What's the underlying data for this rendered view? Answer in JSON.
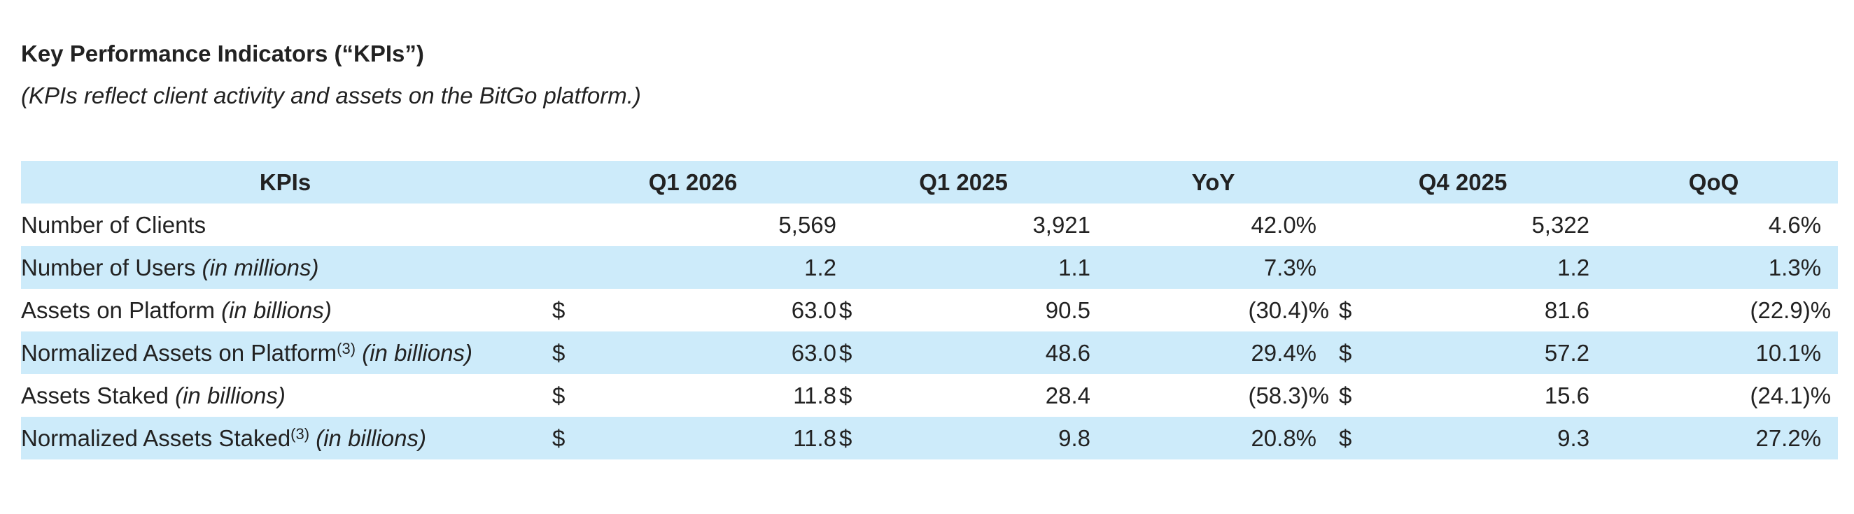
{
  "heading": "Key Performance Indicators (“KPIs”)",
  "subheading": "(KPIs reflect client activity and assets on the BitGo platform.)",
  "table": {
    "headers": {
      "kpis": "KPIs",
      "q1_2026": "Q1 2026",
      "q1_2025": "Q1 2025",
      "yoy": "YoY",
      "q4_2025": "Q4 2025",
      "qoq": "QoQ"
    },
    "rows": [
      {
        "label": "Number of Clients",
        "footnote": "",
        "unit": "",
        "cur_q1_2026": "",
        "q1_2026": "5,569",
        "cur_q1_2025": "",
        "q1_2025": "3,921",
        "yoy": "42.0%",
        "cur_q4_2025": "",
        "q4_2025": "5,322",
        "qoq": "4.6%"
      },
      {
        "label": "Number of Users ",
        "footnote": "",
        "unit": "(in millions)",
        "cur_q1_2026": "",
        "q1_2026": "1.2",
        "cur_q1_2025": "",
        "q1_2025": "1.1",
        "yoy": "7.3%",
        "cur_q4_2025": "",
        "q4_2025": "1.2",
        "qoq": "1.3%"
      },
      {
        "label": "Assets on Platform ",
        "footnote": "",
        "unit": "(in billions)",
        "cur_q1_2026": "$",
        "q1_2026": "63.0",
        "cur_q1_2025": "$",
        "q1_2025": "90.5",
        "yoy": "(30.4)%",
        "cur_q4_2025": "$",
        "q4_2025": "81.6",
        "qoq": "(22.9)%"
      },
      {
        "label": "Normalized Assets on Platform",
        "footnote": "(3)",
        "unit": " (in billions)",
        "cur_q1_2026": "$",
        "q1_2026": "63.0",
        "cur_q1_2025": "$",
        "q1_2025": "48.6",
        "yoy": "29.4%",
        "cur_q4_2025": "$",
        "q4_2025": "57.2",
        "qoq": "10.1%"
      },
      {
        "label": "Assets Staked ",
        "footnote": "",
        "unit": "(in billions)",
        "cur_q1_2026": "$",
        "q1_2026": "11.8",
        "cur_q1_2025": "$",
        "q1_2025": "28.4",
        "yoy": "(58.3)%",
        "cur_q4_2025": "$",
        "q4_2025": "15.6",
        "qoq": "(24.1)%"
      },
      {
        "label": "Normalized Assets Staked",
        "footnote": "(3)",
        "unit": " (in billions)",
        "cur_q1_2026": "$",
        "q1_2026": "11.8",
        "cur_q1_2025": "$",
        "q1_2025": "9.8",
        "yoy": "20.8%",
        "cur_q4_2025": "$",
        "q4_2025": "9.3",
        "qoq": "27.2%"
      }
    ]
  },
  "colors": {
    "header_fill": "#cdebfa",
    "stripe_fill": "#cdebfa",
    "text": "#222222"
  }
}
